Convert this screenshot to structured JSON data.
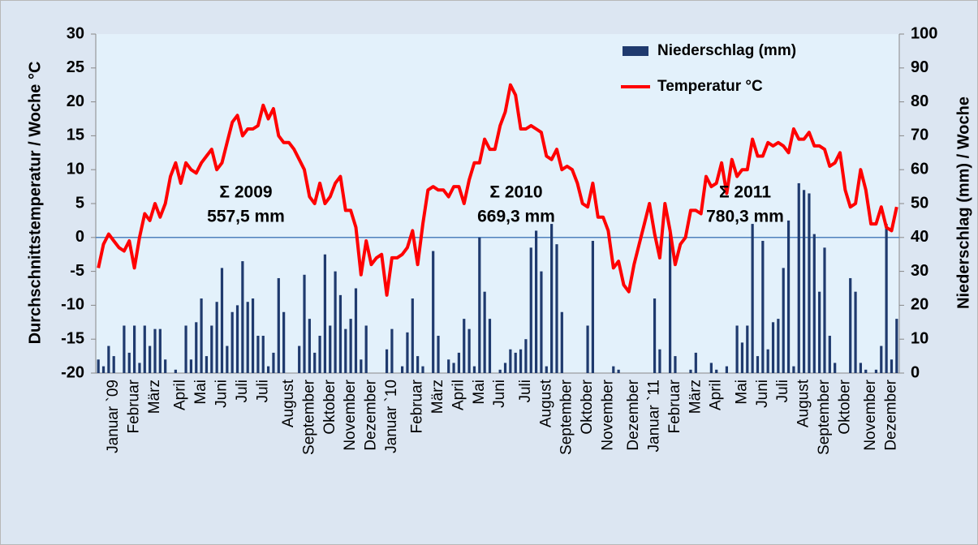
{
  "chart_data": {
    "type": "bar",
    "categories": [
      null,
      null,
      null,
      "Januar `09",
      null,
      null,
      null,
      "Februar",
      null,
      null,
      null,
      "März",
      null,
      null,
      null,
      null,
      "April",
      null,
      null,
      null,
      "Mai",
      null,
      null,
      null,
      "Juni",
      null,
      null,
      null,
      "Juli",
      null,
      null,
      null,
      "Juli",
      null,
      null,
      null,
      null,
      "August",
      null,
      null,
      null,
      "September",
      null,
      null,
      null,
      "Oktober",
      null,
      null,
      null,
      "November",
      null,
      null,
      null,
      "Dezember",
      null,
      null,
      null,
      "Januar `10",
      null,
      null,
      null,
      null,
      "Februar",
      null,
      null,
      null,
      "März",
      null,
      null,
      null,
      "April",
      null,
      null,
      null,
      "Mai",
      null,
      null,
      null,
      "Juni",
      null,
      null,
      null,
      null,
      "Juli",
      null,
      null,
      null,
      "August",
      null,
      null,
      null,
      "September",
      null,
      null,
      null,
      "Oktober",
      null,
      null,
      null,
      "November",
      null,
      null,
      null,
      null,
      "Dezember",
      null,
      null,
      null,
      "Januar `11",
      null,
      null,
      null,
      "Februar",
      null,
      null,
      null,
      "März",
      null,
      null,
      null,
      "April",
      null,
      null,
      null,
      null,
      "Mai",
      null,
      null,
      null,
      "Juni",
      null,
      null,
      null,
      "Juli",
      null,
      null,
      null,
      "August",
      null,
      null,
      null,
      "September",
      null,
      null,
      null,
      "Oktober",
      null,
      null,
      null,
      null,
      "November",
      null,
      null,
      null,
      "Dezember",
      null
    ],
    "series": [
      {
        "name": "Niederschlag (mm)",
        "type": "bar",
        "axis": "y2",
        "color": "#1f3a6e",
        "values": [
          4,
          2,
          8,
          5,
          0,
          14,
          6,
          14,
          3,
          14,
          8,
          13,
          13,
          4,
          0,
          1,
          0,
          14,
          4,
          15,
          22,
          5,
          14,
          21,
          31,
          8,
          18,
          20,
          33,
          21,
          22,
          11,
          11,
          2,
          6,
          28,
          18,
          0,
          0,
          8,
          29,
          16,
          6,
          11,
          35,
          14,
          30,
          23,
          13,
          16,
          25,
          4,
          14,
          0,
          0,
          0,
          7,
          13,
          0,
          2,
          12,
          22,
          5,
          2,
          0,
          36,
          11,
          0,
          4,
          3,
          6,
          16,
          13,
          2,
          40,
          24,
          16,
          0,
          1,
          3,
          7,
          6,
          7,
          10,
          37,
          42,
          30,
          2,
          44,
          38,
          18,
          0,
          0,
          0,
          0,
          14,
          39,
          0,
          0,
          0,
          2,
          1,
          0,
          0,
          0,
          0,
          0,
          0,
          22,
          7,
          0,
          42,
          5,
          0,
          0,
          1,
          6,
          0,
          0,
          3,
          1,
          0,
          2,
          0,
          14,
          9,
          14,
          44,
          5,
          39,
          7,
          15,
          16,
          31,
          45,
          2,
          56,
          54,
          53,
          41,
          24,
          37,
          11,
          3,
          0,
          0,
          28,
          24,
          3,
          1,
          0,
          1,
          8,
          44,
          4,
          16
        ]
      },
      {
        "name": "Temperatur °C",
        "type": "line",
        "color": "#ff0000",
        "values": [
          -4.5,
          -1,
          0.5,
          -0.5,
          -1.5,
          -2,
          -0.5,
          -4.5,
          0,
          3.5,
          2.5,
          5,
          3,
          5,
          9,
          11,
          8,
          11,
          10,
          9.5,
          11,
          12,
          13,
          10,
          11,
          14,
          17,
          18,
          15,
          16,
          16,
          16.5,
          19.5,
          17.5,
          19,
          15,
          14,
          14,
          13,
          11.5,
          10,
          6,
          5,
          8,
          5,
          6,
          8,
          9,
          4,
          4,
          1.5,
          -5.5,
          -0.5,
          -4,
          -3,
          -2.5,
          -8.5,
          -3,
          -3,
          -2.5,
          -1.5,
          1,
          -4,
          2,
          7,
          7.5,
          7,
          7,
          6,
          7.5,
          7.5,
          5,
          8.5,
          11,
          11,
          14.5,
          13,
          13,
          16.5,
          18.5,
          22.5,
          21,
          16,
          16,
          16.5,
          16,
          15.5,
          12,
          11.5,
          13,
          10,
          10.5,
          10,
          8,
          5,
          4.5,
          8,
          3,
          3,
          1,
          -4.5,
          -3.5,
          -7,
          -8,
          -4,
          -1,
          2,
          5,
          0.5,
          -3,
          5,
          1,
          -4,
          -1,
          0,
          4,
          4,
          3.5,
          9,
          7.5,
          8,
          11,
          6.5,
          11.5,
          9,
          10,
          10,
          14.5,
          12,
          12,
          14,
          13.5,
          14,
          13.5,
          12.5,
          16,
          14.5,
          14.5,
          15.5,
          13.5,
          13.5,
          13,
          10.5,
          11,
          12.5,
          7,
          4.5,
          5,
          10,
          7,
          2,
          2,
          4.5,
          1.5,
          1,
          4.5
        ]
      }
    ],
    "ylabel": "Durchschnittstemperatur / Woche °C",
    "y2label": "Niederschlag (mm) / Woche",
    "ylim": [
      -20,
      30
    ],
    "yticks": [
      -20,
      -15,
      -10,
      -5,
      0,
      5,
      10,
      15,
      20,
      25,
      30
    ],
    "y2lim": [
      0,
      100
    ],
    "y2ticks": [
      0,
      10,
      20,
      30,
      40,
      50,
      60,
      70,
      80,
      90,
      100
    ],
    "annotations": [
      "Σ 2009",
      "557,5 mm",
      "Σ 2010",
      "669,3 mm",
      "Σ 2011",
      "780,3 mm"
    ],
    "legend": "top-right",
    "grid": false
  }
}
